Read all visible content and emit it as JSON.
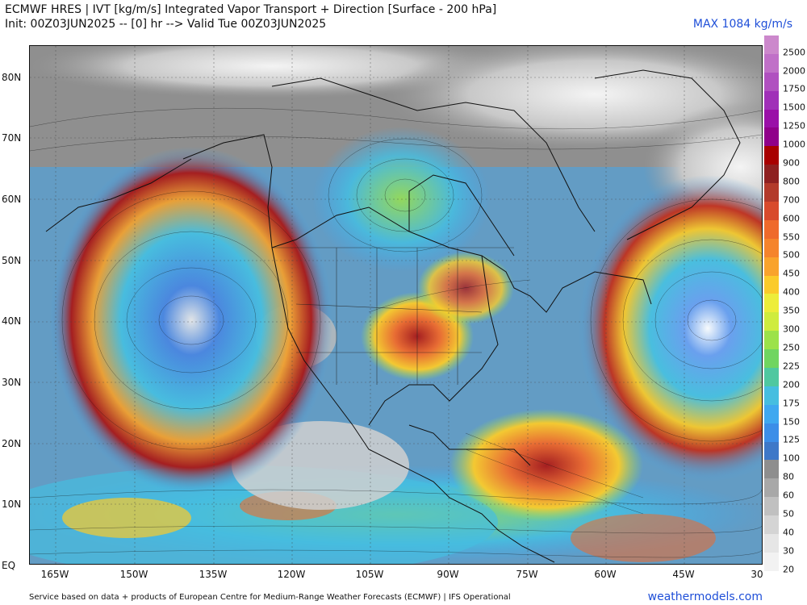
{
  "header": {
    "title_line1": "ECMWF HRES | IVT [kg/m/s] Integrated Vapor Transport + Direction [Surface - 200 hPa]",
    "title_line2": "Init: 00Z03JUN2025 -- [0] hr --> Valid Tue 00Z03JUN2025",
    "max_label": "MAX 1084 kg/m/s"
  },
  "map": {
    "lat_labels": [
      "80N",
      "70N",
      "60N",
      "50N",
      "40N",
      "30N",
      "20N",
      "10N",
      "EQ"
    ],
    "lon_labels": [
      "165W",
      "150W",
      "135W",
      "120W",
      "105W",
      "90W",
      "75W",
      "60W",
      "45W",
      "30"
    ],
    "arrow-icon": "vector-arrow-icon"
  },
  "colorbar": {
    "labels": [
      "2500",
      "2000",
      "1750",
      "1500",
      "1250",
      "1000",
      "900",
      "800",
      "700",
      "600",
      "550",
      "500",
      "450",
      "400",
      "350",
      "300",
      "250",
      "225",
      "200",
      "175",
      "150",
      "125",
      "100",
      "80",
      "60",
      "50",
      "40",
      "30",
      "20"
    ],
    "colors": [
      "#cc88cc",
      "#c070c8",
      "#b050c0",
      "#a030b8",
      "#9a10a8",
      "#90008a",
      "#a80000",
      "#8e2020",
      "#b33a2a",
      "#d84a2c",
      "#ef6a2c",
      "#f5842c",
      "#f9a32c",
      "#fbcb2a",
      "#eded3a",
      "#cfec3e",
      "#9ce24a",
      "#70d560",
      "#4fc8a0",
      "#46bee0",
      "#3fa8f0",
      "#3c8ee8",
      "#3e78c8",
      "#8e8e8e",
      "#a8a8a8",
      "#c0c0c0",
      "#d4d4d4",
      "#e6e6e6",
      "#f2f2f2"
    ]
  },
  "footer": {
    "credit": "Service based on data + products of European Centre for Medium-Range Weather Forecasts (ECMWF) | IFS Operational",
    "brand": "weathermodels.com"
  }
}
